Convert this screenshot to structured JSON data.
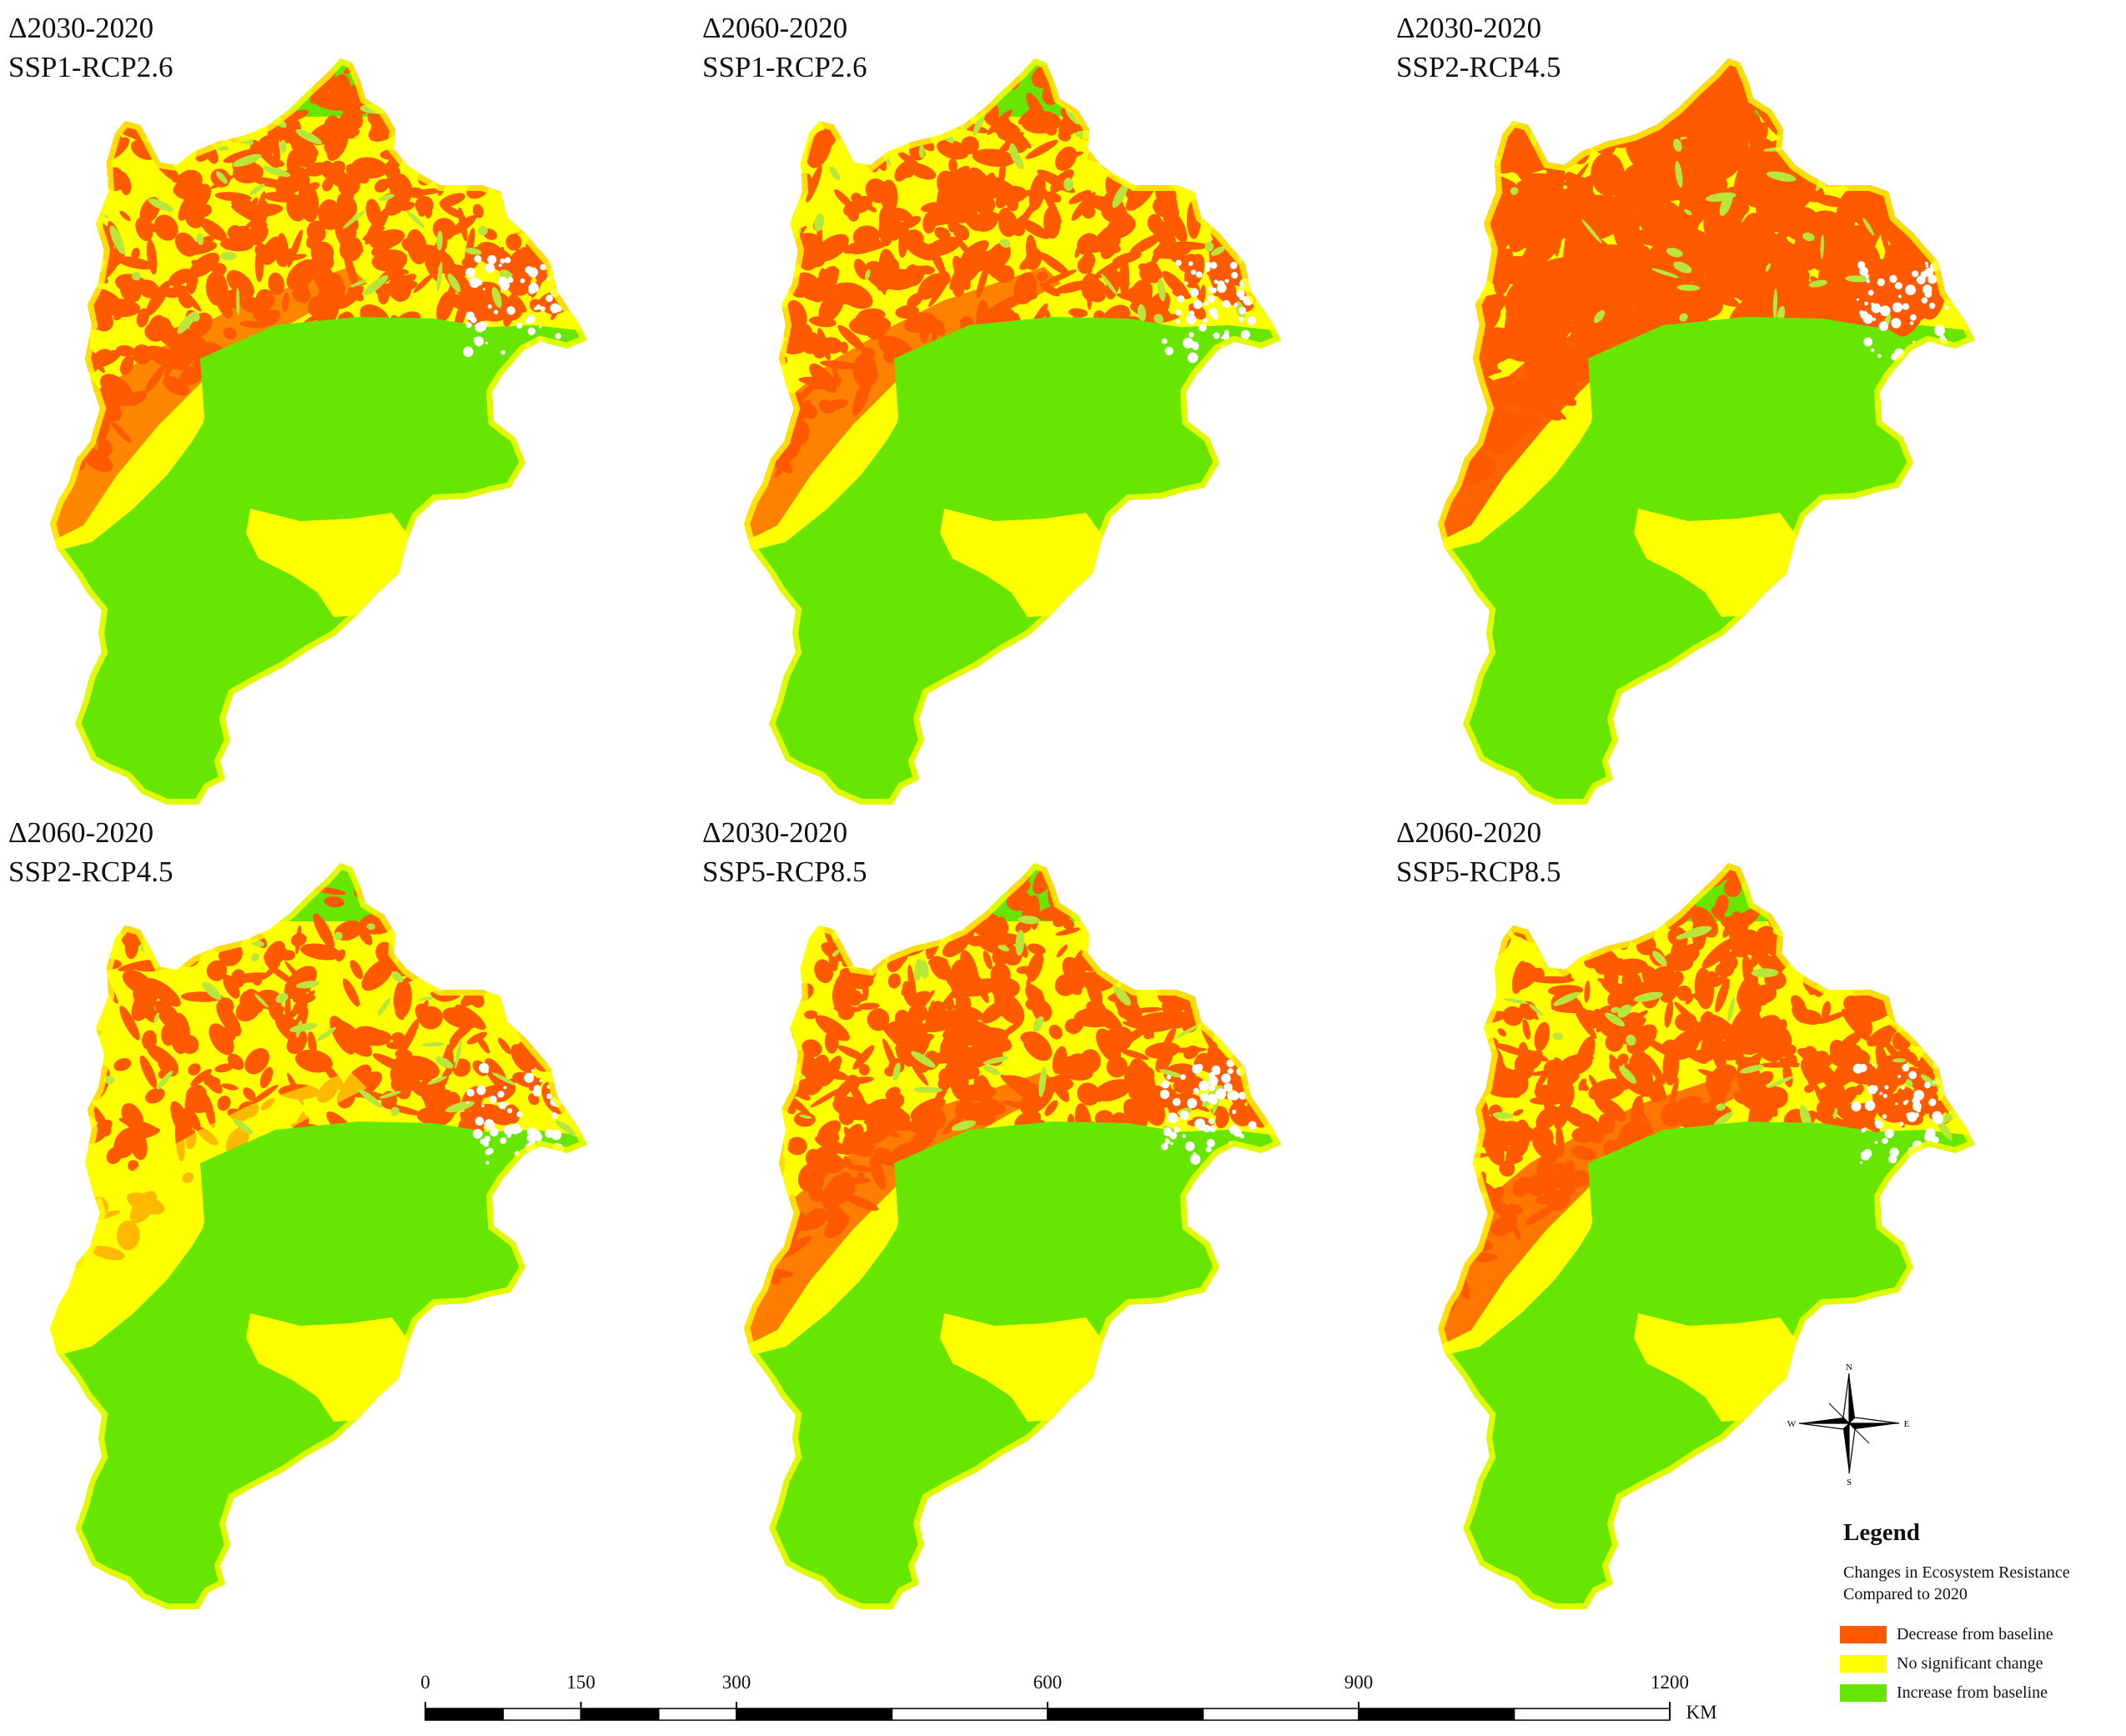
{
  "panels": [
    {
      "period": "Δ2030-2020",
      "scenario": "SSP1-RCP2.6",
      "mix": {
        "red": 0.55,
        "yellow": 0.45
      }
    },
    {
      "period": "Δ2060-2020",
      "scenario": "SSP1-RCP2.6",
      "mix": {
        "red": 0.6,
        "yellow": 0.4
      }
    },
    {
      "period": "Δ2030-2020",
      "scenario": "SSP2-RCP4.5",
      "mix": {
        "red": 0.9,
        "yellow": 0.1
      }
    },
    {
      "period": "Δ2060-2020",
      "scenario": "SSP2-RCP4.5",
      "mix": {
        "red": 0.3,
        "yellow": 0.7
      }
    },
    {
      "period": "Δ2030-2020",
      "scenario": "SSP5-RCP8.5",
      "mix": {
        "red": 0.65,
        "yellow": 0.35
      }
    },
    {
      "period": "Δ2060-2020",
      "scenario": "SSP5-RCP8.5",
      "mix": {
        "red": 0.72,
        "yellow": 0.28
      }
    }
  ],
  "legend": {
    "heading": "Legend",
    "subtitle_line1": "Changes in Ecosystem Resistance",
    "subtitle_line2": "Compared to 2020",
    "items": [
      {
        "label": "Decrease from baseline",
        "color": "#ff5a00"
      },
      {
        "label": "No significant change",
        "color": "#ffff00"
      },
      {
        "label": "Increase from baseline",
        "color": "#66e600"
      }
    ]
  },
  "scale_bar": {
    "ticks": [
      "0",
      "150",
      "300",
      "600",
      "900",
      "1200"
    ],
    "tick_values": [
      0,
      150,
      300,
      600,
      900,
      1200
    ],
    "unit": "KM"
  },
  "compass": {
    "n": "N",
    "s": "S",
    "e": "E",
    "w": "W"
  },
  "colors": {
    "red": "#ff5a00",
    "yellow": "#ffff00",
    "green": "#66e600",
    "olive": "#b8e63a"
  }
}
